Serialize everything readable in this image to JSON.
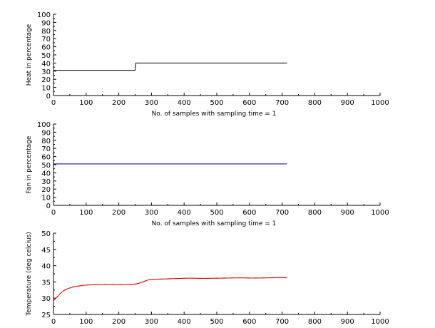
{
  "chart_data": [
    {
      "type": "line",
      "xlabel": "No. of samples with sampling time = 1",
      "ylabel": "Heat in percentage",
      "xlim": [
        0,
        1000
      ],
      "ylim": [
        0,
        100
      ],
      "xticks": [
        0,
        100,
        200,
        300,
        400,
        500,
        600,
        700,
        800,
        900,
        1000
      ],
      "yticks": [
        0,
        10,
        20,
        30,
        40,
        50,
        60,
        70,
        80,
        90,
        100
      ],
      "grid": false,
      "series": [
        {
          "color": "#000000",
          "x": [
            0,
            250,
            252,
            715
          ],
          "y": [
            31,
            31,
            40,
            40
          ]
        }
      ]
    },
    {
      "type": "line",
      "xlabel": "No. of samples with sampling time = 1",
      "ylabel": "Fan in percentage",
      "xlim": [
        0,
        1000
      ],
      "ylim": [
        0,
        100
      ],
      "xticks": [
        0,
        100,
        200,
        300,
        400,
        500,
        600,
        700,
        800,
        900,
        1000
      ],
      "yticks": [
        0,
        10,
        20,
        30,
        40,
        50,
        60,
        70,
        80,
        90,
        100
      ],
      "grid": false,
      "series": [
        {
          "color": "#000080",
          "x": [
            0,
            715
          ],
          "y": [
            51,
            51
          ]
        }
      ]
    },
    {
      "type": "line",
      "xlabel": "",
      "ylabel": "Temperature (deg celcius)",
      "xlim": [
        0,
        1000
      ],
      "ylim": [
        25,
        50
      ],
      "xticks": [
        0,
        100,
        200,
        300,
        400,
        500,
        600,
        700,
        800,
        900,
        1000
      ],
      "yticks": [
        25,
        30,
        35,
        40,
        45,
        50
      ],
      "grid": false,
      "series": [
        {
          "color": "#cc0000",
          "x": [
            0,
            10,
            20,
            30,
            40,
            50,
            60,
            80,
            100,
            130,
            160,
            200,
            230,
            250,
            260,
            270,
            280,
            290,
            300,
            320,
            350,
            400,
            450,
            500,
            550,
            600,
            650,
            700,
            715
          ],
          "y": [
            29.2,
            30.3,
            31.4,
            32.3,
            32.8,
            33.2,
            33.5,
            33.8,
            34.0,
            34.1,
            34.2,
            34.2,
            34.2,
            34.3,
            34.5,
            34.8,
            35.2,
            35.6,
            35.8,
            35.9,
            36.0,
            36.1,
            36.1,
            36.2,
            36.2,
            36.2,
            36.3,
            36.3,
            36.3
          ]
        }
      ]
    }
  ]
}
